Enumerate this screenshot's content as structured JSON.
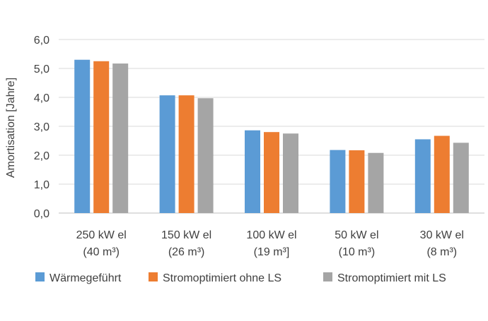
{
  "chart_data": {
    "type": "bar",
    "categories": [
      [
        "250 kW el",
        "(40 m³)"
      ],
      [
        "150 kW el",
        "(26 m³)"
      ],
      [
        "100 kW el",
        "(19 m³]"
      ],
      [
        "50 kW el",
        "(10 m³)"
      ],
      [
        "30 kW el",
        "(8 m³)"
      ]
    ],
    "series": [
      {
        "name": "Wärmegeführt",
        "color": "#5b9bd5",
        "values": [
          5.3,
          4.07,
          2.86,
          2.18,
          2.55
        ]
      },
      {
        "name": "Stromoptimiert ohne LS",
        "color": "#ed7d31",
        "values": [
          5.25,
          4.07,
          2.8,
          2.17,
          2.67
        ]
      },
      {
        "name": "Stromoptimiert mit LS",
        "color": "#a5a5a5",
        "values": [
          5.17,
          3.97,
          2.75,
          2.08,
          2.43
        ]
      }
    ],
    "ylabel": "Amortisation [Jahre]",
    "ylim": [
      0,
      6
    ],
    "yticks": [
      "0,0",
      "1,0",
      "2,0",
      "3,0",
      "4,0",
      "5,0",
      "6,0"
    ],
    "grid": true,
    "legend_position": "bottom"
  }
}
